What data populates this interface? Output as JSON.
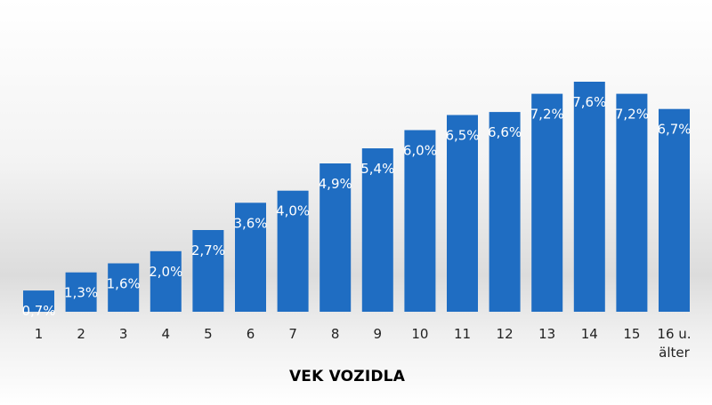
{
  "chart_data": {
    "type": "bar",
    "categories": [
      "1",
      "2",
      "3",
      "4",
      "5",
      "6",
      "7",
      "8",
      "9",
      "10",
      "11",
      "12",
      "13",
      "14",
      "15",
      "16 u. älter"
    ],
    "values": [
      0.7,
      1.3,
      1.6,
      2.0,
      2.7,
      3.6,
      4.0,
      4.9,
      5.4,
      6.0,
      6.5,
      6.6,
      7.2,
      7.6,
      7.2,
      6.7
    ],
    "data_labels": [
      "0,7%",
      "1,3%",
      "1,6%",
      "2,0%",
      "2,7%",
      "3,6%",
      "4,0%",
      "4,9%",
      "5,4%",
      "6,0%",
      "6,5%",
      "6,6%",
      "7,2%",
      "7,6%",
      "7,2%",
      "6,7%"
    ],
    "xlabel": "VEK VOZIDLA",
    "ylabel": "",
    "ylim": [
      0,
      7.6
    ],
    "grid": false,
    "bar_color": "#1f6dc2"
  }
}
